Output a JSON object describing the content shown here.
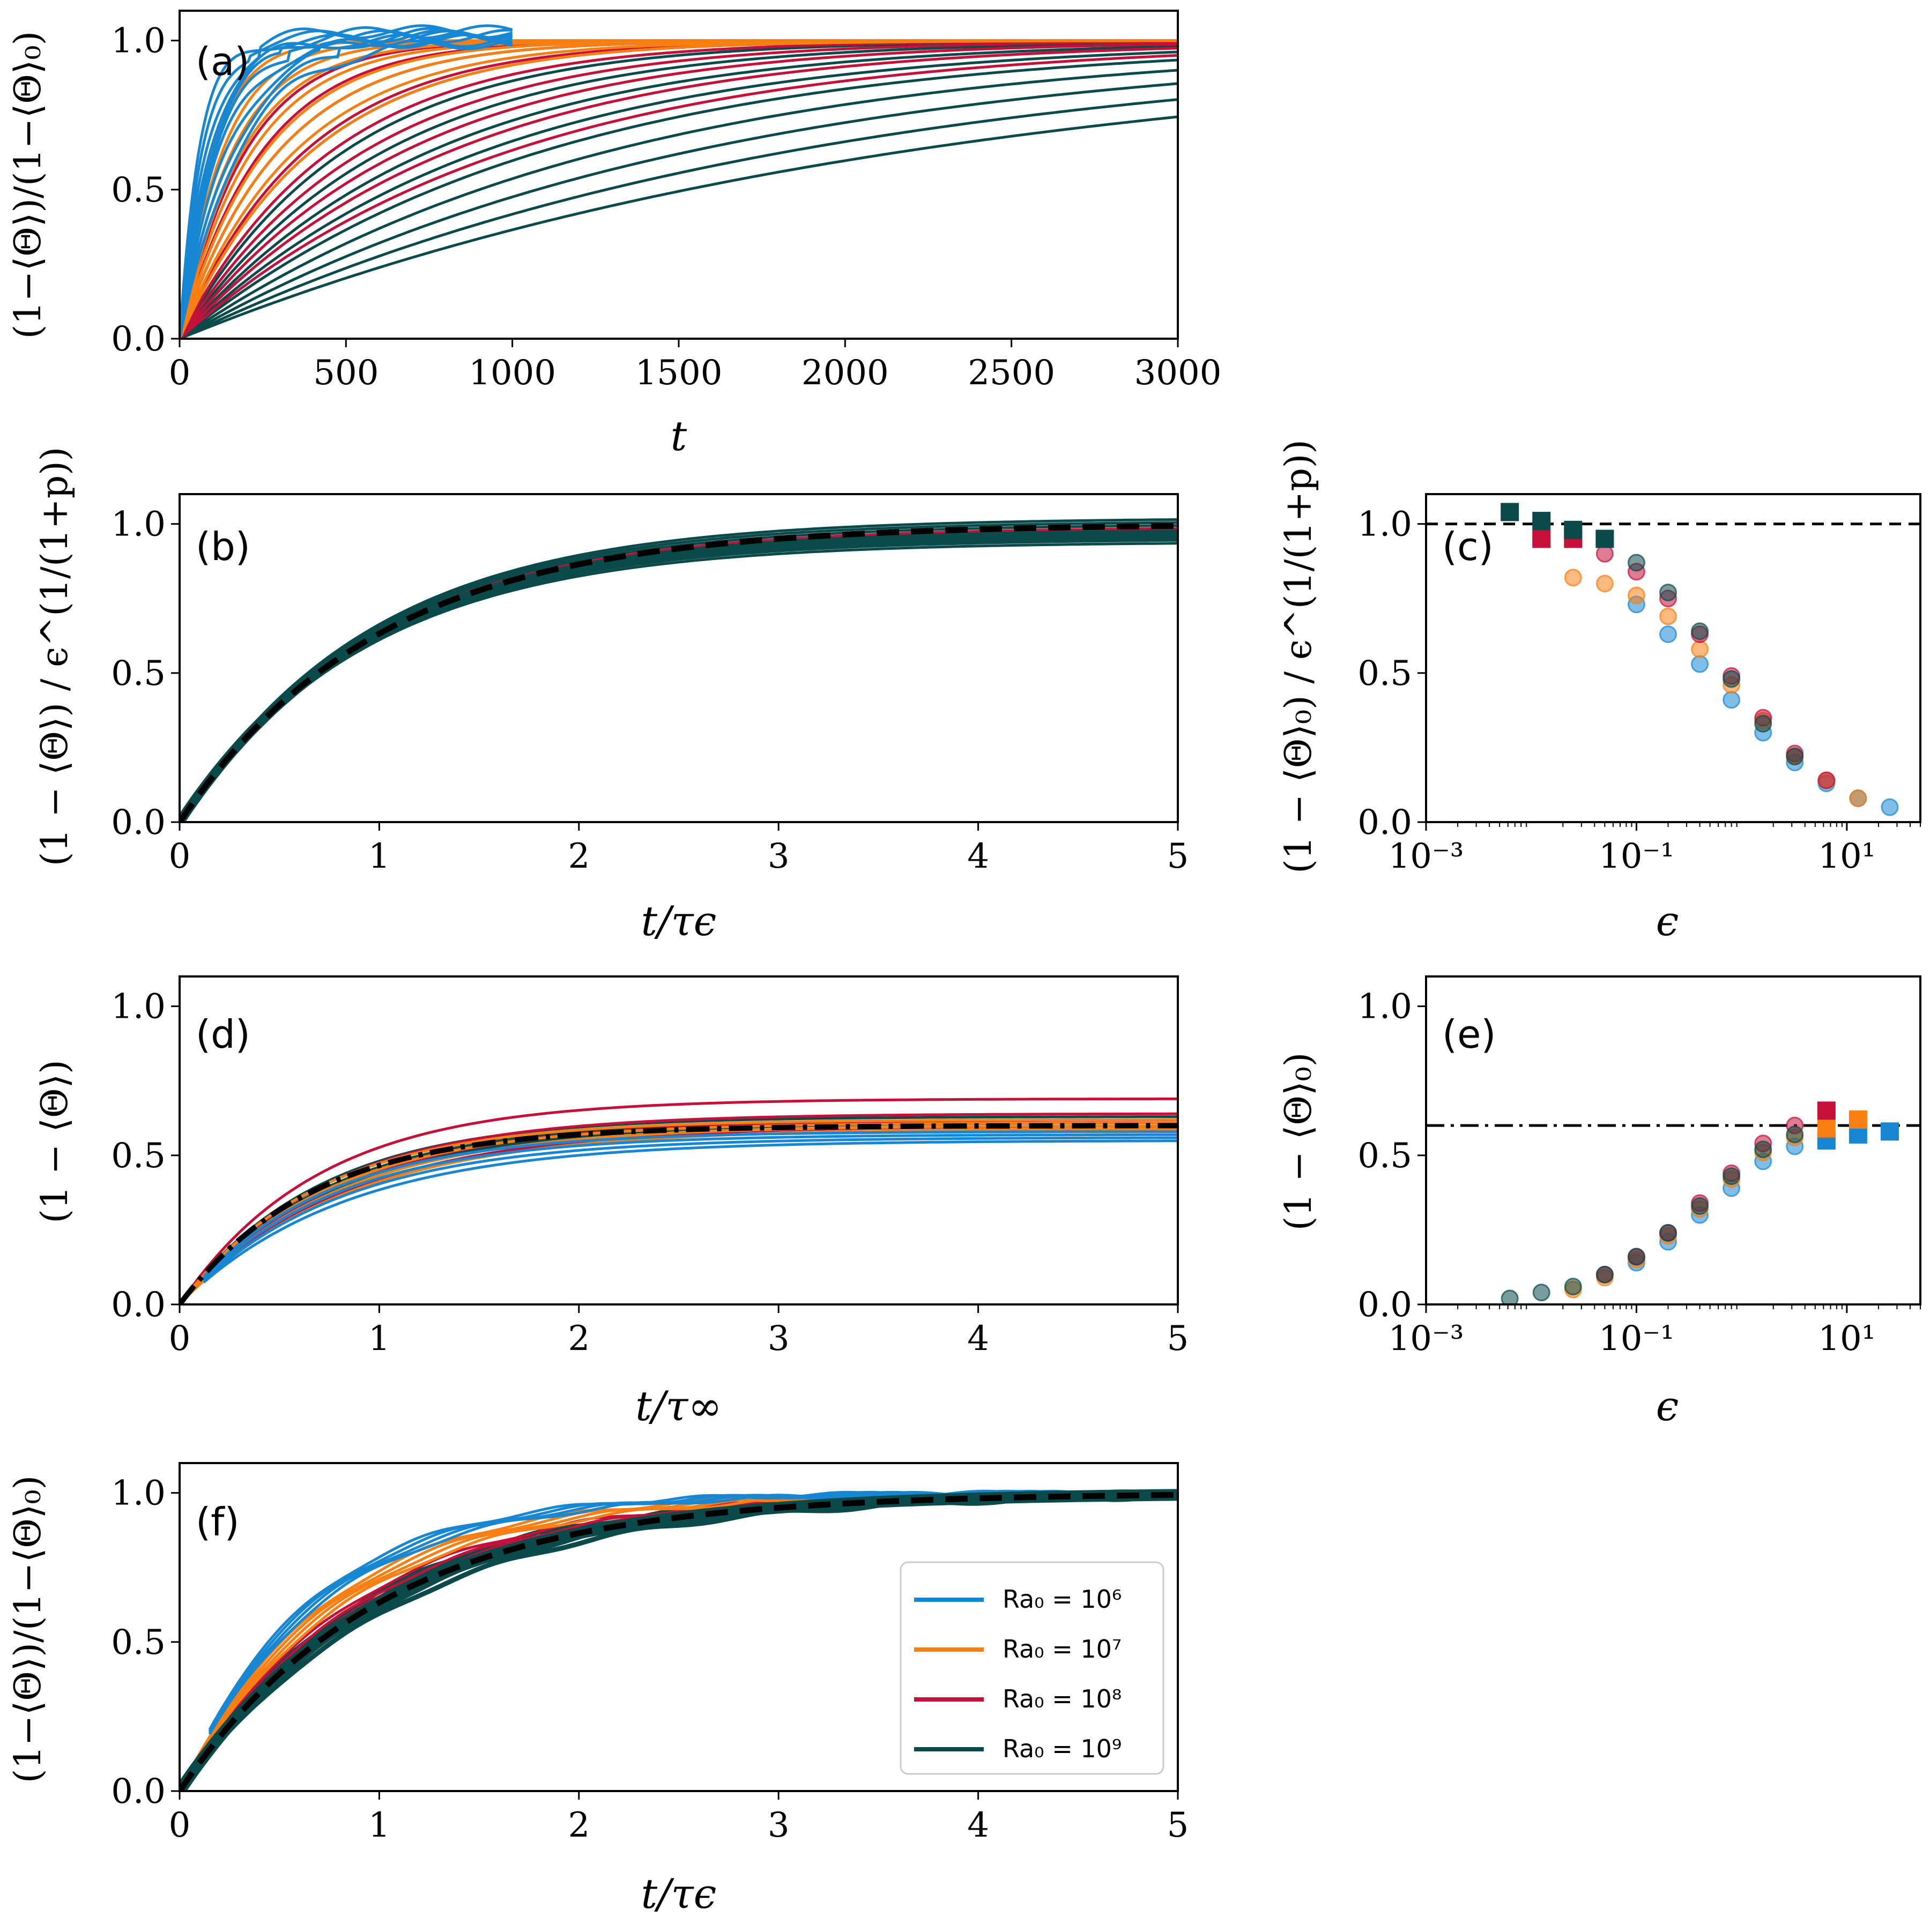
{
  "colors": {
    "Ra6": "#1787d3",
    "Ra7": "#f97f12",
    "Ra8": "#c5103a",
    "Ra9": "#0b4a4a",
    "ref": "#000000"
  },
  "chart_data": [
    {
      "id": "a",
      "label": "(a)",
      "type": "line",
      "xlabel": "t",
      "ylabel": "(1−⟨Θ⟩)/(1−⟨Θ⟩₀)",
      "xlim": [
        0,
        3000
      ],
      "ylim": [
        0,
        1.1
      ],
      "xticks": [
        "0",
        "500",
        "1000",
        "1500",
        "2000",
        "2500",
        "3000"
      ],
      "yticks": [
        "0.0",
        "0.5",
        "1.0"
      ],
      "series": [
        {
          "name": "Ra₀ = 10⁶",
          "color_key": "Ra6",
          "t_end": 1000,
          "timescales": [
            60,
            70,
            80,
            90,
            100,
            110,
            120,
            140,
            160,
            180
          ]
        },
        {
          "name": "Ra₀ = 10⁷",
          "color_key": "Ra7",
          "t_end": 3000,
          "timescales": [
            100,
            130,
            160,
            190,
            220,
            260,
            300,
            350,
            400
          ]
        },
        {
          "name": "Ra₀ = 10⁸",
          "color_key": "Ra8",
          "t_end": 3000,
          "timescales": [
            200,
            250,
            300,
            380,
            460,
            560,
            680,
            820,
            1000
          ]
        },
        {
          "name": "Ra₀ = 10⁹",
          "color_key": "Ra9",
          "t_end": 3000,
          "timescales": [
            300,
            400,
            500,
            620,
            760,
            920,
            1100,
            1300,
            1550,
            1850,
            2200
          ]
        }
      ]
    },
    {
      "id": "b",
      "label": "(b)",
      "type": "line",
      "xlabel": "t/τϵ",
      "ylabel": "(1 − ⟨Θ⟩) / ϵ^(1/(1+p))",
      "xlim": [
        0,
        5
      ],
      "ylim": [
        0,
        1.1
      ],
      "xticks": [
        "0",
        "1",
        "2",
        "3",
        "4",
        "5"
      ],
      "yticks": [
        "0.0",
        "0.5",
        "1.0"
      ],
      "reference": {
        "style": "dashed",
        "formula": "1 - exp(-t)"
      },
      "curve_plateaus": [
        0.94,
        0.95,
        0.96,
        0.97,
        0.98,
        0.99,
        1.0,
        1.01,
        1.02
      ]
    },
    {
      "id": "c",
      "label": "(c)",
      "type": "scatter",
      "xlabel": "ϵ",
      "ylabel": "(1 − ⟨Θ⟩₀) / ϵ^(1/(1+p))",
      "xscale": "log",
      "xlim": [
        0.001,
        50
      ],
      "ylim": [
        0,
        1.1
      ],
      "xticks": [
        "10⁻³",
        "10⁻¹",
        "10¹"
      ],
      "yticks": [
        "0.0",
        "0.5",
        "1.0"
      ],
      "hline": {
        "value": 1.0,
        "style": "dashed"
      },
      "circles": {
        "Ra6": [
          [
            0.1,
            0.73
          ],
          [
            0.2,
            0.63
          ],
          [
            0.4,
            0.53
          ],
          [
            0.8,
            0.41
          ],
          [
            1.6,
            0.3
          ],
          [
            3.2,
            0.2
          ],
          [
            6.4,
            0.13
          ],
          [
            12.8,
            0.08
          ],
          [
            25.6,
            0.05
          ]
        ],
        "Ra7": [
          [
            0.025,
            0.82
          ],
          [
            0.05,
            0.8
          ],
          [
            0.1,
            0.76
          ],
          [
            0.2,
            0.69
          ],
          [
            0.4,
            0.58
          ],
          [
            0.8,
            0.46
          ],
          [
            1.6,
            0.34
          ],
          [
            3.2,
            0.22
          ],
          [
            6.4,
            0.14
          ],
          [
            12.8,
            0.08
          ]
        ],
        "Ra8": [
          [
            0.05,
            0.9
          ],
          [
            0.1,
            0.84
          ],
          [
            0.2,
            0.75
          ],
          [
            0.4,
            0.63
          ],
          [
            0.8,
            0.49
          ],
          [
            1.6,
            0.35
          ],
          [
            3.2,
            0.23
          ],
          [
            6.4,
            0.14
          ]
        ],
        "Ra9": [
          [
            0.1,
            0.87
          ],
          [
            0.2,
            0.77
          ],
          [
            0.4,
            0.64
          ],
          [
            0.8,
            0.48
          ],
          [
            1.6,
            0.33
          ],
          [
            3.2,
            0.22
          ]
        ]
      },
      "squares": {
        "Ra8": [
          [
            0.0125,
            0.95
          ],
          [
            0.025,
            0.95
          ]
        ],
        "Ra9": [
          [
            0.00625,
            1.04
          ],
          [
            0.0125,
            1.01
          ],
          [
            0.025,
            0.98
          ],
          [
            0.05,
            0.95
          ]
        ]
      }
    },
    {
      "id": "d",
      "label": "(d)",
      "type": "line",
      "xlabel": "t/τ∞",
      "ylabel": "(1 − ⟨Θ⟩)",
      "xlim": [
        0,
        5
      ],
      "ylim": [
        0,
        1.1
      ],
      "xticks": [
        "0",
        "1",
        "2",
        "3",
        "4",
        "5"
      ],
      "yticks": [
        "0.0",
        "0.5",
        "1.0"
      ],
      "reference": {
        "style": "dashdot",
        "formula": "0.6 (1 - exp(-1.5 t))"
      },
      "plateaus": {
        "Ra6": [
          0.55,
          0.56,
          0.57,
          0.58
        ],
        "Ra7": [
          0.59,
          0.6,
          0.61,
          0.62
        ],
        "Ra8": [
          0.6,
          0.62,
          0.64,
          0.69
        ],
        "Ra9": [
          0.6,
          0.61,
          0.62,
          0.63
        ]
      }
    },
    {
      "id": "e",
      "label": "(e)",
      "type": "scatter",
      "xlabel": "ϵ",
      "ylabel": "(1 − ⟨Θ⟩₀)",
      "xscale": "log",
      "xlim": [
        0.001,
        50
      ],
      "ylim": [
        0,
        1.1
      ],
      "xticks": [
        "10⁻³",
        "10⁻¹",
        "10¹"
      ],
      "yticks": [
        "0.0",
        "0.5",
        "1.0"
      ],
      "hline": {
        "value": 0.6,
        "style": "dashdot"
      },
      "circles": {
        "Ra6": [
          [
            0.1,
            0.14
          ],
          [
            0.2,
            0.21
          ],
          [
            0.4,
            0.3
          ],
          [
            0.8,
            0.39
          ],
          [
            1.6,
            0.48
          ],
          [
            3.2,
            0.53
          ]
        ],
        "Ra7": [
          [
            0.025,
            0.05
          ],
          [
            0.05,
            0.09
          ],
          [
            0.1,
            0.15
          ],
          [
            0.2,
            0.23
          ],
          [
            0.4,
            0.32
          ],
          [
            0.8,
            0.42
          ],
          [
            1.6,
            0.51
          ],
          [
            3.2,
            0.56
          ]
        ],
        "Ra8": [
          [
            0.05,
            0.1
          ],
          [
            0.1,
            0.16
          ],
          [
            0.2,
            0.24
          ],
          [
            0.4,
            0.34
          ],
          [
            0.8,
            0.44
          ],
          [
            1.6,
            0.54
          ],
          [
            3.2,
            0.6
          ]
        ],
        "Ra9": [
          [
            0.00625,
            0.02
          ],
          [
            0.0125,
            0.04
          ],
          [
            0.025,
            0.06
          ],
          [
            0.05,
            0.1
          ],
          [
            0.1,
            0.16
          ],
          [
            0.2,
            0.24
          ],
          [
            0.4,
            0.33
          ],
          [
            0.8,
            0.43
          ],
          [
            1.6,
            0.52
          ],
          [
            3.2,
            0.57
          ]
        ]
      },
      "squares": {
        "Ra6": [
          [
            6.4,
            0.55
          ],
          [
            12.8,
            0.57
          ],
          [
            25.6,
            0.58
          ]
        ],
        "Ra7": [
          [
            6.4,
            0.59
          ],
          [
            12.8,
            0.62
          ]
        ],
        "Ra8": [
          [
            6.4,
            0.65
          ]
        ]
      }
    },
    {
      "id": "f",
      "label": "(f)",
      "type": "line",
      "xlabel": "t/τϵ",
      "ylabel": "(1−⟨Θ⟩)/(1−⟨Θ⟩₀)",
      "xlim": [
        0,
        5
      ],
      "ylim": [
        0,
        1.1
      ],
      "xticks": [
        "0",
        "1",
        "2",
        "3",
        "4",
        "5"
      ],
      "yticks": [
        "0.0",
        "0.5",
        "1.0"
      ],
      "reference": {
        "style": "dashed",
        "formula": "1 - exp(-t)"
      },
      "rates": {
        "Ra6": [
          1.4,
          1.45,
          1.5,
          1.55
        ],
        "Ra7": [
          1.2,
          1.25,
          1.3,
          1.35
        ],
        "Ra8": [
          1.05,
          1.1,
          1.15
        ],
        "Ra9": [
          0.9,
          0.95,
          1.0,
          1.05,
          1.1
        ]
      },
      "legend": {
        "position": "lower right",
        "entries": [
          {
            "label": "Ra₀ = 10⁶",
            "color_key": "Ra6"
          },
          {
            "label": "Ra₀ = 10⁷",
            "color_key": "Ra7"
          },
          {
            "label": "Ra₀ = 10⁸",
            "color_key": "Ra8"
          },
          {
            "label": "Ra₀ = 10⁹",
            "color_key": "Ra9"
          }
        ]
      }
    }
  ]
}
